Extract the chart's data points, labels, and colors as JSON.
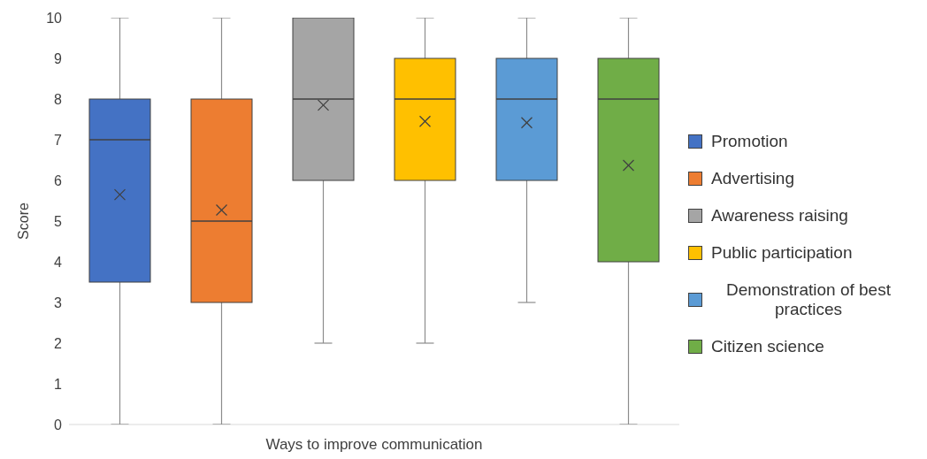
{
  "chart_data": {
    "type": "box",
    "xlabel": "Ways to improve communication",
    "ylabel": "Score",
    "categories": [
      null
    ],
    "ylim": [
      0,
      10
    ],
    "yticks": [
      0,
      1,
      2,
      3,
      4,
      5,
      6,
      7,
      8,
      9,
      10
    ],
    "tick_labels": "y",
    "legend": "right",
    "series": [
      {
        "name": "Promotion",
        "color": "#4472c4",
        "boxes": [
          {
            "low": 0,
            "q1": 3.5,
            "median": 7,
            "q3": 8,
            "high": 10,
            "mean": 5.65
          }
        ]
      },
      {
        "name": "Advertising",
        "color": "#ed7d31",
        "boxes": [
          {
            "low": 0,
            "q1": 3,
            "median": 5,
            "q3": 8,
            "high": 10,
            "mean": 5.27
          }
        ]
      },
      {
        "name": "Awareness raising",
        "color": "#a5a5a5",
        "boxes": [
          {
            "low": 2,
            "q1": 6,
            "median": 8,
            "q3": 10,
            "high": 10,
            "mean": 7.85
          }
        ]
      },
      {
        "name": "Public participation",
        "color": "#ffc000",
        "boxes": [
          {
            "low": 2,
            "q1": 6,
            "median": 8,
            "q3": 9,
            "high": 10,
            "mean": 7.45
          }
        ]
      },
      {
        "name": "Demonstration of best practices",
        "color": "#5b9bd5",
        "boxes": [
          {
            "low": 3,
            "q1": 6,
            "median": 8,
            "q3": 9,
            "high": 10,
            "mean": 7.42
          }
        ]
      },
      {
        "name": "Citizen science",
        "color": "#70ad47",
        "boxes": [
          {
            "low": 0,
            "q1": 4,
            "median": 8,
            "q3": 9,
            "high": 10,
            "mean": 6.37
          }
        ]
      }
    ]
  }
}
